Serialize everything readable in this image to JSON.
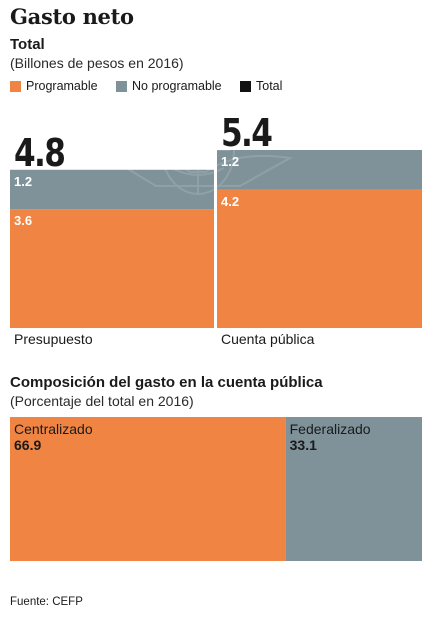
{
  "header": {
    "title": "Gasto neto"
  },
  "chart_data": [
    {
      "type": "bar",
      "title": "Total",
      "subtitle": "(Billones de pesos en 2016)",
      "stacked": true,
      "categories": [
        "Presupuesto",
        "Cuenta pública"
      ],
      "series": [
        {
          "name": "Programable",
          "values": [
            3.6,
            4.2
          ],
          "color": "#f08442"
        },
        {
          "name": "No programable",
          "values": [
            1.2,
            1.2
          ],
          "color": "#7f929a"
        },
        {
          "name": "Total",
          "values": [
            4.8,
            5.4
          ],
          "color": "#111111"
        }
      ],
      "legend_placement": "top-left",
      "ylim": [
        0,
        5.4
      ]
    },
    {
      "type": "bar",
      "title": "Composición del gasto en la cuenta pública",
      "subtitle": "(Porcentaje del total en 2016)",
      "stacked": true,
      "orientation": "horizontal",
      "categories": [
        "Centralizado",
        "Federalizado"
      ],
      "values": [
        66.9,
        33.1
      ],
      "colors": [
        "#f08442",
        "#7f929a"
      ]
    }
  ],
  "footer": {
    "source": "Fuente: CEFP"
  }
}
